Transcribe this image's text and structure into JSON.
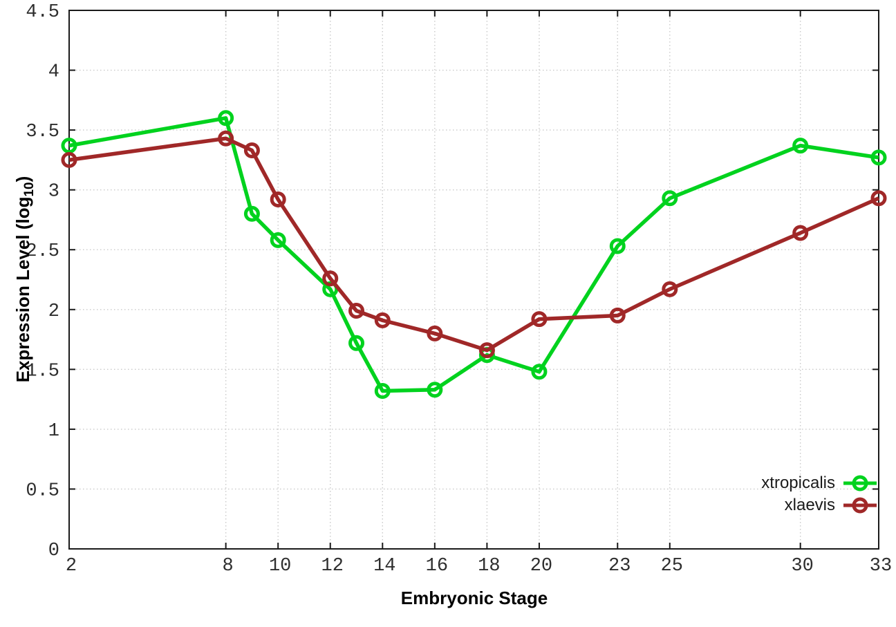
{
  "figure": {
    "xlabel": "Embryonic Stage",
    "ylabel_main": "Expression Level (log",
    "ylabel_sub": "10",
    "ylabel_close": ")"
  },
  "legend": {
    "position": "inside-bottom-right",
    "items": [
      {
        "label": "xtropicalis",
        "color": "#00d21e"
      },
      {
        "label": "xlaevis",
        "color": "#a02828"
      }
    ]
  },
  "chart_data": {
    "type": "line",
    "title": "",
    "xlabel": "Embryonic Stage",
    "ylabel": "Expression Level (log10)",
    "x": [
      2,
      8,
      9,
      10,
      12,
      13,
      14,
      16,
      18,
      20,
      23,
      25,
      30,
      33
    ],
    "series": [
      {
        "name": "xtropicalis",
        "color": "#00d21e",
        "marker": "open-circle",
        "values": [
          3.37,
          3.6,
          2.8,
          2.58,
          2.17,
          1.72,
          1.32,
          1.33,
          1.62,
          1.48,
          2.53,
          2.93,
          3.37,
          3.27
        ]
      },
      {
        "name": "xlaevis",
        "color": "#a02828",
        "marker": "open-circle",
        "values": [
          3.25,
          3.43,
          3.33,
          2.92,
          2.26,
          1.99,
          1.91,
          1.8,
          1.66,
          1.92,
          1.95,
          2.17,
          2.64,
          2.93
        ]
      }
    ],
    "xlim": [
      2,
      33
    ],
    "ylim": [
      0,
      4.5
    ],
    "x_tick_values": [
      2,
      8,
      10,
      12,
      14,
      16,
      18,
      20,
      23,
      25,
      30,
      33
    ],
    "x_tick_labels": [
      "2",
      "8",
      "10",
      "12",
      "14",
      "16",
      "18",
      "20",
      "23",
      "25",
      "30",
      "33"
    ],
    "y_tick_values": [
      0,
      0.5,
      1,
      1.5,
      2,
      2.5,
      3,
      3.5,
      4,
      4.5
    ],
    "y_tick_labels": [
      "0",
      "0.5",
      "1",
      "1.5",
      "2",
      "2.5",
      "3",
      "3.5",
      "4",
      "4.5"
    ],
    "grid": true,
    "grid_style": "dotted",
    "legend_position": "inside-bottom-right"
  },
  "style": {
    "border_color": "#1a1a1a",
    "grid_color": "#c9c9c9",
    "tick_label_color": "#2e2e2e",
    "background": "#ffffff"
  }
}
